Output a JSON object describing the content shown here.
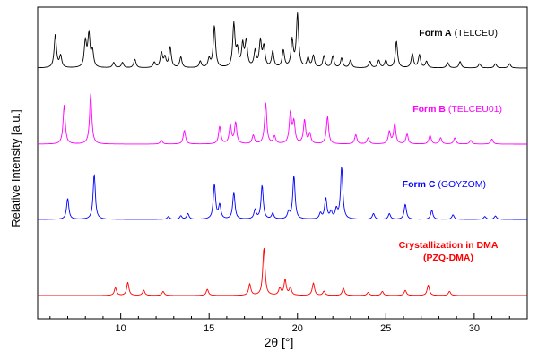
{
  "chart_data": {
    "type": "line",
    "xlabel": "2θ [°]",
    "ylabel": "Relative Intensity [a.u.]",
    "xlim": [
      5.3,
      33
    ],
    "x_ticks": [
      10,
      15,
      20,
      25,
      30
    ],
    "x_minor_step": 1,
    "grid": false,
    "legend": "labels placed beside each trace",
    "series": [
      {
        "name": "Form A",
        "code": "(TELCEU)",
        "color": "#000000",
        "peaks": [
          [
            6.3,
            0.62
          ],
          [
            6.6,
            0.22
          ],
          [
            8.0,
            0.48
          ],
          [
            8.2,
            0.6
          ],
          [
            8.4,
            0.3
          ],
          [
            9.6,
            0.1
          ],
          [
            10.1,
            0.1
          ],
          [
            10.8,
            0.16
          ],
          [
            11.9,
            0.1
          ],
          [
            12.3,
            0.28
          ],
          [
            12.5,
            0.18
          ],
          [
            12.8,
            0.38
          ],
          [
            13.4,
            0.2
          ],
          [
            14.5,
            0.12
          ],
          [
            15.0,
            0.16
          ],
          [
            15.3,
            0.78
          ],
          [
            16.4,
            0.8
          ],
          [
            16.6,
            0.3
          ],
          [
            16.9,
            0.42
          ],
          [
            17.1,
            0.48
          ],
          [
            17.6,
            0.3
          ],
          [
            17.9,
            0.48
          ],
          [
            18.1,
            0.38
          ],
          [
            18.6,
            0.3
          ],
          [
            19.2,
            0.32
          ],
          [
            19.7,
            0.5
          ],
          [
            20.0,
            1.0
          ],
          [
            20.6,
            0.18
          ],
          [
            20.9,
            0.22
          ],
          [
            21.5,
            0.22
          ],
          [
            22.0,
            0.22
          ],
          [
            22.5,
            0.18
          ],
          [
            23.0,
            0.14
          ],
          [
            24.1,
            0.12
          ],
          [
            24.6,
            0.14
          ],
          [
            25.0,
            0.14
          ],
          [
            25.6,
            0.5
          ],
          [
            26.5,
            0.26
          ],
          [
            26.9,
            0.24
          ],
          [
            27.3,
            0.12
          ],
          [
            28.5,
            0.1
          ],
          [
            29.2,
            0.12
          ],
          [
            30.3,
            0.08
          ],
          [
            31.2,
            0.08
          ],
          [
            32.0,
            0.08
          ]
        ]
      },
      {
        "name": "Form B",
        "code": "(TELCEU01)",
        "color": "#ff00ff",
        "peaks": [
          [
            6.8,
            0.62
          ],
          [
            8.3,
            0.8
          ],
          [
            12.3,
            0.06
          ],
          [
            13.6,
            0.22
          ],
          [
            15.6,
            0.28
          ],
          [
            16.2,
            0.3
          ],
          [
            16.5,
            0.34
          ],
          [
            17.5,
            0.14
          ],
          [
            18.2,
            0.65
          ],
          [
            18.7,
            0.12
          ],
          [
            19.6,
            0.5
          ],
          [
            19.8,
            0.34
          ],
          [
            20.4,
            0.38
          ],
          [
            20.7,
            0.16
          ],
          [
            21.7,
            0.44
          ],
          [
            23.3,
            0.15
          ],
          [
            24.0,
            0.1
          ],
          [
            25.2,
            0.2
          ],
          [
            25.5,
            0.32
          ],
          [
            26.2,
            0.16
          ],
          [
            27.5,
            0.14
          ],
          [
            28.1,
            0.1
          ],
          [
            28.9,
            0.1
          ],
          [
            29.8,
            0.06
          ],
          [
            31.0,
            0.08
          ]
        ]
      },
      {
        "name": "Form C",
        "code": "(GOYZOM)",
        "color": "#0000ff",
        "peaks": [
          [
            7.0,
            0.36
          ],
          [
            8.5,
            0.78
          ],
          [
            12.7,
            0.05
          ],
          [
            13.4,
            0.06
          ],
          [
            13.8,
            0.1
          ],
          [
            15.3,
            0.6
          ],
          [
            15.6,
            0.24
          ],
          [
            16.4,
            0.46
          ],
          [
            17.6,
            0.16
          ],
          [
            18.0,
            0.58
          ],
          [
            18.6,
            0.1
          ],
          [
            19.5,
            0.12
          ],
          [
            19.8,
            0.75
          ],
          [
            21.3,
            0.1
          ],
          [
            21.6,
            0.36
          ],
          [
            21.9,
            0.12
          ],
          [
            22.2,
            0.16
          ],
          [
            22.5,
            0.9
          ],
          [
            24.3,
            0.1
          ],
          [
            25.2,
            0.1
          ],
          [
            26.1,
            0.26
          ],
          [
            27.6,
            0.16
          ],
          [
            28.8,
            0.08
          ],
          [
            30.6,
            0.05
          ],
          [
            31.2,
            0.06
          ]
        ]
      },
      {
        "name": "Crystallization in DMA",
        "code": "(PZQ-DMA)",
        "color": "#ff0000",
        "peaks": [
          [
            9.7,
            0.15
          ],
          [
            10.4,
            0.25
          ],
          [
            11.3,
            0.1
          ],
          [
            12.4,
            0.08
          ],
          [
            14.9,
            0.12
          ],
          [
            17.3,
            0.22
          ],
          [
            18.1,
            0.92
          ],
          [
            19.0,
            0.14
          ],
          [
            19.3,
            0.3
          ],
          [
            19.6,
            0.15
          ],
          [
            20.9,
            0.24
          ],
          [
            21.5,
            0.08
          ],
          [
            22.6,
            0.14
          ],
          [
            24.0,
            0.06
          ],
          [
            24.8,
            0.08
          ],
          [
            26.1,
            0.1
          ],
          [
            27.4,
            0.2
          ],
          [
            28.6,
            0.08
          ]
        ]
      }
    ]
  }
}
